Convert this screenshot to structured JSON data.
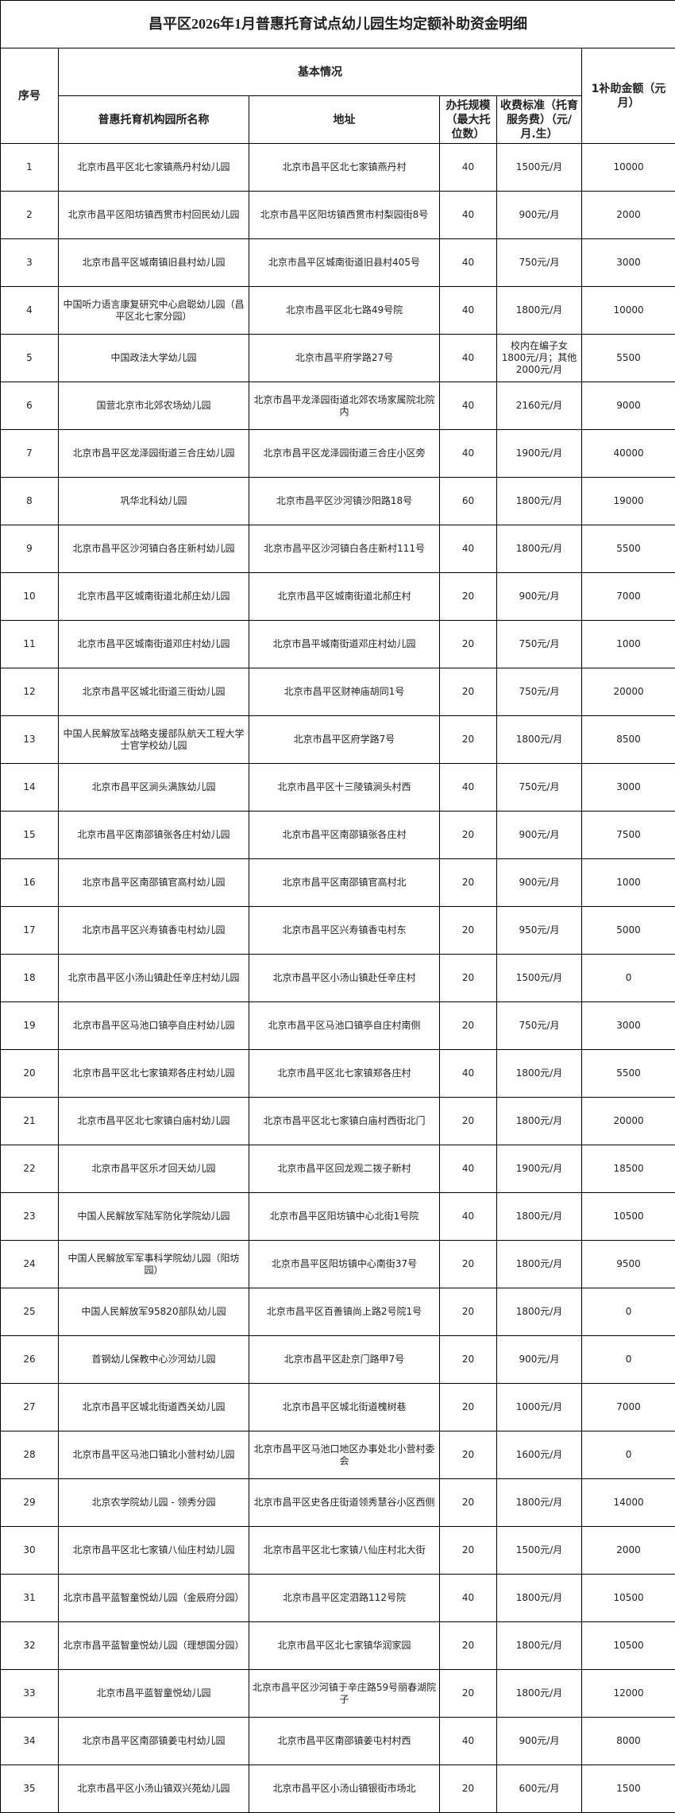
{
  "title": "昌平区2026年1月普惠托育试点幼儿园生均定额补助资金明细",
  "headers": {
    "seq": "序号",
    "basic": "基本情况",
    "name": "普惠托育机构园所名称",
    "address": "地址",
    "capacity": "办托规模（最大托位数）",
    "fee": "收费标准（托育服务费）（元/月.生）",
    "amount": "1补助金额（元月）"
  },
  "rows": [
    {
      "seq": "1",
      "name": "北京市昌平区北七家镇燕丹村幼儿园",
      "address": "北京市昌平区北七家镇燕丹村",
      "capacity": "40",
      "fee": "1500元/月",
      "amount": "10000"
    },
    {
      "seq": "2",
      "name": "北京市昌平区阳坊镇西贯市村回民幼儿园",
      "address": "北京市昌平区阳坊镇西贯市村梨园街8号",
      "capacity": "40",
      "fee": "900元/月",
      "amount": "2000"
    },
    {
      "seq": "3",
      "name": "北京市昌平区城南镇旧县村幼儿园",
      "address": "北京市昌平区城南街道旧县村405号",
      "capacity": "40",
      "fee": "750元/月",
      "amount": "3000"
    },
    {
      "seq": "4",
      "name": "中国听力语言康复研究中心启聪幼儿园（昌平区北七家分园）",
      "address": "北京市昌平区北七路49号院",
      "capacity": "40",
      "fee": "1800元/月",
      "amount": "10000"
    },
    {
      "seq": "5",
      "name": "中国政法大学幼儿园",
      "address": "北京市昌平府学路27号",
      "capacity": "40",
      "fee": "校内在编子女1800元/月；其他2000元/月",
      "amount": "5500"
    },
    {
      "seq": "6",
      "name": "国营北京市北郊农场幼儿园",
      "address": "北京市昌平龙泽园街道北郊农场家属院北院内",
      "capacity": "40",
      "fee": "2160元/月",
      "amount": "9000"
    },
    {
      "seq": "7",
      "name": "北京市昌平区龙泽园街道三合庄幼儿园",
      "address": "北京市昌平区龙泽园街道三合庄小区旁",
      "capacity": "40",
      "fee": "1900元/月",
      "amount": "40000"
    },
    {
      "seq": "8",
      "name": "巩华北科幼儿园",
      "address": "北京市昌平区沙河镇沙阳路18号",
      "capacity": "60",
      "fee": "1800元/月",
      "amount": "19000"
    },
    {
      "seq": "9",
      "name": "北京市昌平区沙河镇白各庄新村幼儿园",
      "address": "北京市昌平区沙河镇白各庄新村111号",
      "capacity": "40",
      "fee": "1800元/月",
      "amount": "5500"
    },
    {
      "seq": "10",
      "name": "北京市昌平区城南街道北郝庄幼儿园",
      "address": "北京市昌平区城南街道北郝庄村",
      "capacity": "20",
      "fee": "900元/月",
      "amount": "7000"
    },
    {
      "seq": "11",
      "name": "北京市昌平区城南街道邓庄村幼儿园",
      "address": "北京市昌平城南街道邓庄村幼儿园",
      "capacity": "20",
      "fee": "750元/月",
      "amount": "1000"
    },
    {
      "seq": "12",
      "name": "北京市昌平区城北街道三街幼儿园",
      "address": "北京市昌平区财神庙胡同1号",
      "capacity": "20",
      "fee": "750元/月",
      "amount": "20000"
    },
    {
      "seq": "13",
      "name": "中国人民解放军战略支援部队航天工程大学士官学校幼儿园",
      "address": "北京市昌平区府学路7号",
      "capacity": "20",
      "fee": "1800元/月",
      "amount": "8500"
    },
    {
      "seq": "14",
      "name": "北京市昌平区涧头满族幼儿园",
      "address": "北京市昌平区十三陵镇涧头村西",
      "capacity": "40",
      "fee": "750元/月",
      "amount": "3000"
    },
    {
      "seq": "15",
      "name": "北京市昌平区南邵镇张各庄村幼儿园",
      "address": "北京市昌平区南邵镇张各庄村",
      "capacity": "20",
      "fee": "900元/月",
      "amount": "7500"
    },
    {
      "seq": "16",
      "name": "北京市昌平区南邵镇官高村幼儿园",
      "address": "北京市昌平区南邵镇官高村北",
      "capacity": "20",
      "fee": "900元/月",
      "amount": "1000"
    },
    {
      "seq": "17",
      "name": "北京市昌平区兴寿镇香屯村幼儿园",
      "address": "北京市昌平区兴寿镇香屯村东",
      "capacity": "20",
      "fee": "950元/月",
      "amount": "5000"
    },
    {
      "seq": "18",
      "name": "北京市昌平区小汤山镇赴任辛庄村幼儿园",
      "address": "北京市昌平区小汤山镇赴任辛庄村",
      "capacity": "20",
      "fee": "1500元/月",
      "amount": "0"
    },
    {
      "seq": "19",
      "name": "北京市昌平区马池口镇亭自庄村幼儿园",
      "address": "北京市昌平区马池口镇亭自庄村南侧",
      "capacity": "20",
      "fee": "750元/月",
      "amount": "3000"
    },
    {
      "seq": "20",
      "name": "北京市昌平区北七家镇郑各庄村幼儿园",
      "address": "北京市昌平区北七家镇郑各庄村",
      "capacity": "40",
      "fee": "1800元/月",
      "amount": "5500"
    },
    {
      "seq": "21",
      "name": "北京市昌平区北七家镇白庙村幼儿园",
      "address": "北京市昌平区北七家镇白庙村西街北门",
      "capacity": "20",
      "fee": "1800元/月",
      "amount": "20000"
    },
    {
      "seq": "22",
      "name": "北京市昌平区乐才回天幼儿园",
      "address": "北京市昌平区回龙观二拨子新村",
      "capacity": "40",
      "fee": "1900元/月",
      "amount": "18500"
    },
    {
      "seq": "23",
      "name": "中国人民解放军陆军防化学院幼儿园",
      "address": "北京市昌平区阳坊镇中心北街1号院",
      "capacity": "40",
      "fee": "1800元/月",
      "amount": "10500"
    },
    {
      "seq": "24",
      "name": "中国人民解放军军事科学院幼儿园（阳坊园）",
      "address": "北京市昌平区阳坊镇中心南街37号",
      "capacity": "20",
      "fee": "1800元/月",
      "amount": "9500"
    },
    {
      "seq": "25",
      "name": "中国人民解放军95820部队幼儿园",
      "address": "北京市昌平区百善镇尚上路2号院1号",
      "capacity": "20",
      "fee": "1800元/月",
      "amount": "0"
    },
    {
      "seq": "26",
      "name": "首钢幼儿保教中心沙河幼儿园",
      "address": "北京市昌平区赴京门路甲7号",
      "capacity": "20",
      "fee": "900元/月",
      "amount": "0"
    },
    {
      "seq": "27",
      "name": "北京市昌平区城北街道西关幼儿园",
      "address": "北京市昌平区城北街道槐树巷",
      "capacity": "20",
      "fee": "1000元/月",
      "amount": "7000"
    },
    {
      "seq": "28",
      "name": "北京市昌平区马池口镇北小营村幼儿园",
      "address": "北京市昌平区马池口地区办事处北小营村委会",
      "capacity": "20",
      "fee": "1600元/月",
      "amount": "0"
    },
    {
      "seq": "29",
      "name": "北京农学院幼儿园 - 领秀分园",
      "address": "北京市昌平区史各庄街道领秀慧谷小区西侧",
      "capacity": "20",
      "fee": "1800元/月",
      "amount": "14000"
    },
    {
      "seq": "30",
      "name": "北京市昌平区北七家镇八仙庄村幼儿园",
      "address": "北京市昌平区北七家镇八仙庄村北大街",
      "capacity": "20",
      "fee": "1500元/月",
      "amount": "2000"
    },
    {
      "seq": "31",
      "name": "北京市昌平蓝智童悦幼儿园（金辰府分园）",
      "address": "北京市昌平区定泗路112号院",
      "capacity": "40",
      "fee": "1800元/月",
      "amount": "10500"
    },
    {
      "seq": "32",
      "name": "北京市昌平蓝智童悦幼儿园（理想国分园）",
      "address": "北京市昌平区北七家镇华润家园",
      "capacity": "20",
      "fee": "1800元/月",
      "amount": "10500"
    },
    {
      "seq": "33",
      "name": "北京市昌平蓝智童悦幼儿园",
      "address": "北京市昌平区沙河镇于辛庄路59号丽春湖院子",
      "capacity": "20",
      "fee": "1800元/月",
      "amount": "12000"
    },
    {
      "seq": "34",
      "name": "北京市昌平区南邵镇姜屯村幼儿园",
      "address": "北京市昌平区南邵镇姜屯村村西",
      "capacity": "40",
      "fee": "900元/月",
      "amount": "8000"
    },
    {
      "seq": "35",
      "name": "北京市昌平区小汤山镇双兴苑幼儿园",
      "address": "北京市昌平区小汤山镇银街市场北",
      "capacity": "20",
      "fee": "600元/月",
      "amount": "1500"
    }
  ]
}
